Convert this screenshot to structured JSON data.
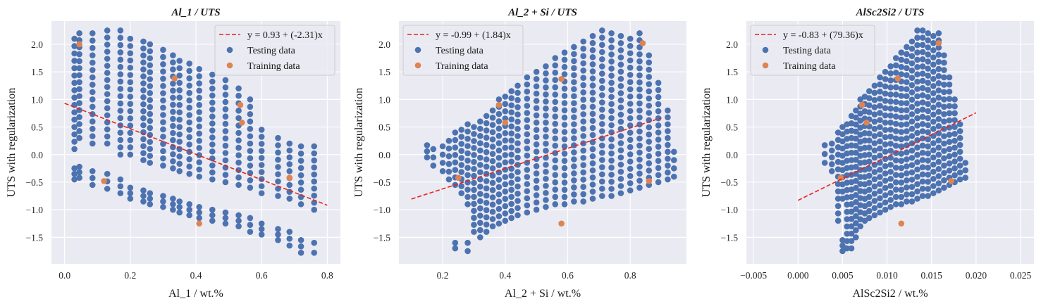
{
  "legend_labels": {
    "testing": "Testing data",
    "training": "Training data"
  },
  "colors": {
    "background": "#eaeaf2",
    "grid": "#ffffff",
    "testing": "#4c72b0",
    "training": "#dd8452",
    "fit": "#e8231a"
  },
  "chart_data": [
    {
      "type": "scatter",
      "title": "Al_1 / UTS",
      "xlabel": "Al_1 / wt.%",
      "ylabel": "UTS with regularization",
      "xlim": [
        -0.04,
        0.84
      ],
      "ylim": [
        -1.98,
        2.42
      ],
      "xticks": [
        0.0,
        0.2,
        0.4,
        0.6,
        0.8
      ],
      "xtick_labels": [
        "0.0",
        "0.2",
        "0.4",
        "0.6",
        "0.8"
      ],
      "yticks": [
        -1.5,
        -1.0,
        -0.5,
        0.0,
        0.5,
        1.0,
        1.5,
        2.0
      ],
      "ytick_labels": [
        "−1.5",
        "−1.0",
        "−0.5",
        "0.0",
        "0.5",
        "1.0",
        "1.5",
        "2.0"
      ],
      "grid": true,
      "legend_position": "top-right",
      "fit": {
        "label": "y = 0.93 + (-2.31)x",
        "intercept": 0.93,
        "slope": -2.31,
        "x_range": [
          0.0,
          0.8
        ]
      },
      "testing_columns": [
        {
          "x": 0.03,
          "bands": [
            [
              -0.45,
              -0.25
            ],
            [
              0.1,
              2.1
            ]
          ]
        },
        {
          "x": 0.045,
          "bands": [
            [
              -0.42,
              -0.22
            ],
            [
              0.3,
              2.2
            ]
          ]
        },
        {
          "x": 0.085,
          "bands": [
            [
              -0.55,
              -0.3
            ],
            [
              0.2,
              2.2
            ]
          ]
        },
        {
          "x": 0.13,
          "bands": [
            [
              -0.62,
              -0.35
            ],
            [
              0.2,
              2.25
            ]
          ]
        },
        {
          "x": 0.17,
          "bands": [
            [
              -0.7,
              -0.45
            ],
            [
              0.0,
              2.25
            ]
          ]
        },
        {
          "x": 0.2,
          "bands": [
            [
              -0.8,
              -0.6
            ],
            [
              0.0,
              2.1
            ]
          ]
        },
        {
          "x": 0.24,
          "bands": [
            [
              -0.85,
              -0.65
            ],
            [
              -0.1,
              2.05
            ]
          ]
        },
        {
          "x": 0.26,
          "bands": [
            [
              -0.9,
              -0.7
            ],
            [
              -0.15,
              2.0
            ]
          ]
        },
        {
          "x": 0.3,
          "bands": [
            [
              -0.95,
              -0.75
            ],
            [
              -0.2,
              1.9
            ]
          ]
        },
        {
          "x": 0.33,
          "bands": [
            [
              -1.0,
              -0.8
            ],
            [
              -0.25,
              1.8
            ]
          ]
        },
        {
          "x": 0.35,
          "bands": [
            [
              -1.05,
              -0.85
            ],
            [
              -0.3,
              1.7
            ]
          ]
        },
        {
          "x": 0.38,
          "bands": [
            [
              -1.1,
              -0.9
            ],
            [
              -0.35,
              1.65
            ]
          ]
        },
        {
          "x": 0.41,
          "bands": [
            [
              -1.15,
              -0.95
            ],
            [
              -0.4,
              1.55
            ]
          ]
        },
        {
          "x": 0.45,
          "bands": [
            [
              -1.2,
              -1.0
            ],
            [
              -0.45,
              1.45
            ]
          ]
        },
        {
          "x": 0.49,
          "bands": [
            [
              -1.25,
              -1.05
            ],
            [
              -0.5,
              1.35
            ]
          ]
        },
        {
          "x": 0.53,
          "bands": [
            [
              -1.3,
              -1.1
            ],
            [
              -0.55,
              1.2
            ]
          ]
        },
        {
          "x": 0.565,
          "bands": [
            [
              -1.4,
              -1.15
            ],
            [
              -0.6,
              1.0
            ]
          ]
        },
        {
          "x": 0.6,
          "bands": [
            [
              -1.45,
              -1.25
            ],
            [
              -0.7,
              0.45
            ]
          ]
        },
        {
          "x": 0.65,
          "bands": [
            [
              -1.55,
              -1.35
            ],
            [
              -0.75,
              0.3
            ]
          ]
        },
        {
          "x": 0.685,
          "bands": [
            [
              -1.65,
              -1.4
            ],
            [
              -0.8,
              0.2
            ]
          ]
        },
        {
          "x": 0.72,
          "bands": [
            [
              -1.78,
              -1.55
            ],
            [
              -0.9,
              0.15
            ]
          ]
        },
        {
          "x": 0.76,
          "bands": [
            [
              -1.78,
              -1.6
            ],
            [
              -1.0,
              0.15
            ]
          ]
        }
      ],
      "training_points": [
        {
          "x": 0.045,
          "y": 2.0
        },
        {
          "x": 0.335,
          "y": 1.38
        },
        {
          "x": 0.535,
          "y": 0.9
        },
        {
          "x": 0.54,
          "y": 0.58
        },
        {
          "x": 0.12,
          "y": -0.48
        },
        {
          "x": 0.685,
          "y": -0.42
        },
        {
          "x": 0.41,
          "y": -1.25
        }
      ]
    },
    {
      "type": "scatter",
      "title": "Al_2 + Si / UTS",
      "xlabel": "Al_2 + Si / wt.%",
      "ylabel": "UTS with regularization",
      "xlim": [
        0.06,
        0.98
      ],
      "ylim": [
        -1.98,
        2.42
      ],
      "xticks": [
        0.2,
        0.4,
        0.6,
        0.8
      ],
      "xtick_labels": [
        "0.2",
        "0.4",
        "0.6",
        "0.8"
      ],
      "yticks": [
        -1.5,
        -1.0,
        -0.5,
        0.0,
        0.5,
        1.0,
        1.5,
        2.0
      ],
      "ytick_labels": [
        "−1.5",
        "−1.0",
        "−0.5",
        "0.0",
        "0.5",
        "1.0",
        "1.5",
        "2.0"
      ],
      "grid": true,
      "legend_position": "top-left",
      "fit": {
        "label": "y = -0.99 + (1.84)x",
        "intercept": -0.99,
        "slope": 1.84,
        "x_range": [
          0.1,
          0.9
        ]
      },
      "testing_columns": [
        {
          "x": 0.15,
          "bands": [
            [
              -0.05,
              0.17
            ]
          ]
        },
        {
          "x": 0.17,
          "bands": [
            [
              -0.2,
              0.1
            ]
          ]
        },
        {
          "x": 0.2,
          "bands": [
            [
              -0.3,
              0.15
            ]
          ]
        },
        {
          "x": 0.22,
          "bands": [
            [
              -0.45,
              0.25
            ]
          ]
        },
        {
          "x": 0.24,
          "bands": [
            [
              -1.7,
              -1.6
            ],
            [
              -0.55,
              0.4
            ]
          ]
        },
        {
          "x": 0.26,
          "bands": [
            [
              -0.7,
              0.45
            ]
          ]
        },
        {
          "x": 0.28,
          "bands": [
            [
              -1.75,
              -1.6
            ],
            [
              -0.9,
              0.55
            ]
          ]
        },
        {
          "x": 0.3,
          "bands": [
            [
              -1.4,
              0.5
            ]
          ]
        },
        {
          "x": 0.32,
          "bands": [
            [
              -1.5,
              0.6
            ]
          ]
        },
        {
          "x": 0.34,
          "bands": [
            [
              -1.4,
              0.7
            ]
          ]
        },
        {
          "x": 0.36,
          "bands": [
            [
              -1.3,
              0.8
            ]
          ]
        },
        {
          "x": 0.38,
          "bands": [
            [
              -1.25,
              1.0
            ]
          ]
        },
        {
          "x": 0.4,
          "bands": [
            [
              -1.2,
              1.05
            ]
          ]
        },
        {
          "x": 0.42,
          "bands": [
            [
              -1.15,
              1.15
            ]
          ]
        },
        {
          "x": 0.44,
          "bands": [
            [
              -1.1,
              1.25
            ]
          ]
        },
        {
          "x": 0.47,
          "bands": [
            [
              -1.05,
              1.4
            ]
          ]
        },
        {
          "x": 0.5,
          "bands": [
            [
              -1.0,
              1.5
            ]
          ]
        },
        {
          "x": 0.53,
          "bands": [
            [
              -0.95,
              1.6
            ]
          ]
        },
        {
          "x": 0.56,
          "bands": [
            [
              -0.9,
              1.75
            ]
          ]
        },
        {
          "x": 0.59,
          "bands": [
            [
              -0.9,
              1.85
            ]
          ]
        },
        {
          "x": 0.62,
          "bands": [
            [
              -0.85,
              1.95
            ]
          ]
        },
        {
          "x": 0.65,
          "bands": [
            [
              -0.85,
              2.05
            ]
          ]
        },
        {
          "x": 0.68,
          "bands": [
            [
              -0.8,
              2.15
            ]
          ]
        },
        {
          "x": 0.71,
          "bands": [
            [
              -0.75,
              2.25
            ]
          ]
        },
        {
          "x": 0.74,
          "bands": [
            [
              -0.75,
              2.2
            ]
          ]
        },
        {
          "x": 0.77,
          "bands": [
            [
              -0.7,
              2.15
            ]
          ]
        },
        {
          "x": 0.8,
          "bands": [
            [
              -0.65,
              2.1
            ]
          ]
        },
        {
          "x": 0.83,
          "bands": [
            [
              -0.6,
              2.2
            ]
          ]
        },
        {
          "x": 0.86,
          "bands": [
            [
              -0.55,
              1.8
            ]
          ]
        },
        {
          "x": 0.89,
          "bands": [
            [
              -0.5,
              1.3
            ]
          ]
        },
        {
          "x": 0.92,
          "bands": [
            [
              -0.45,
              0.8
            ]
          ]
        },
        {
          "x": 0.94,
          "bands": [
            [
              -0.4,
              0.05
            ]
          ]
        }
      ],
      "training_points": [
        {
          "x": 0.84,
          "y": 2.02
        },
        {
          "x": 0.58,
          "y": 1.37
        },
        {
          "x": 0.38,
          "y": 0.9
        },
        {
          "x": 0.4,
          "y": 0.58
        },
        {
          "x": 0.25,
          "y": -0.42
        },
        {
          "x": 0.86,
          "y": -0.48
        },
        {
          "x": 0.58,
          "y": -1.25
        }
      ]
    },
    {
      "type": "scatter",
      "title": "AlSc2Si2 / UTS",
      "xlabel": "AlSc2Si2 / wt.%",
      "ylabel": "UTS with regularization",
      "xlim": [
        -0.0058,
        0.0265
      ],
      "ylim": [
        -1.98,
        2.42
      ],
      "xticks": [
        -0.005,
        0.0,
        0.005,
        0.01,
        0.015,
        0.02,
        0.025
      ],
      "xtick_labels": [
        "−0.005",
        "0.000",
        "0.005",
        "0.010",
        "0.015",
        "0.020",
        "0.025"
      ],
      "yticks": [
        -1.5,
        -1.0,
        -0.5,
        0.0,
        0.5,
        1.0,
        1.5,
        2.0
      ],
      "ytick_labels": [
        "−1.5",
        "−1.0",
        "−0.5",
        "0.0",
        "0.5",
        "1.0",
        "1.5",
        "2.0"
      ],
      "grid": true,
      "legend_position": "top-left",
      "fit": {
        "label": "y = -0.83 + (79.36)x",
        "intercept": -0.83,
        "slope": 79.36,
        "x_range": [
          0.0,
          0.02
        ]
      },
      "testing_columns": [
        {
          "x": 0.003,
          "bands": [
            [
              -0.15,
              0.17
            ]
          ]
        },
        {
          "x": 0.0038,
          "bands": [
            [
              -0.3,
              0.2
            ]
          ]
        },
        {
          "x": 0.0045,
          "bands": [
            [
              -1.2,
              0.4
            ]
          ]
        },
        {
          "x": 0.005,
          "bands": [
            [
              -1.75,
              -1.55
            ],
            [
              -0.8,
              0.5
            ]
          ]
        },
        {
          "x": 0.0055,
          "bands": [
            [
              -1.7,
              0.55
            ]
          ]
        },
        {
          "x": 0.006,
          "bands": [
            [
              -1.7,
              0.7
            ]
          ]
        },
        {
          "x": 0.0065,
          "bands": [
            [
              -1.5,
              0.8
            ]
          ]
        },
        {
          "x": 0.007,
          "bands": [
            [
              -1.3,
              1.0
            ]
          ]
        },
        {
          "x": 0.0075,
          "bands": [
            [
              -1.2,
              1.05
            ]
          ]
        },
        {
          "x": 0.008,
          "bands": [
            [
              -1.15,
              1.15
            ]
          ]
        },
        {
          "x": 0.0086,
          "bands": [
            [
              -1.1,
              1.25
            ]
          ]
        },
        {
          "x": 0.0092,
          "bands": [
            [
              -1.05,
              1.4
            ]
          ]
        },
        {
          "x": 0.0098,
          "bands": [
            [
              -1.0,
              1.5
            ]
          ]
        },
        {
          "x": 0.0104,
          "bands": [
            [
              -0.95,
              1.6
            ]
          ]
        },
        {
          "x": 0.011,
          "bands": [
            [
              -0.9,
              1.75
            ]
          ]
        },
        {
          "x": 0.0116,
          "bands": [
            [
              -0.9,
              1.85
            ]
          ]
        },
        {
          "x": 0.0122,
          "bands": [
            [
              -0.85,
              1.95
            ]
          ]
        },
        {
          "x": 0.0128,
          "bands": [
            [
              -0.85,
              2.05
            ]
          ]
        },
        {
          "x": 0.0134,
          "bands": [
            [
              -0.8,
              2.25
            ]
          ]
        },
        {
          "x": 0.014,
          "bands": [
            [
              -0.75,
              2.25
            ]
          ]
        },
        {
          "x": 0.0146,
          "bands": [
            [
              -0.75,
              2.2
            ]
          ]
        },
        {
          "x": 0.0152,
          "bands": [
            [
              -0.7,
              2.15
            ]
          ]
        },
        {
          "x": 0.0158,
          "bands": [
            [
              -0.65,
              2.2
            ]
          ]
        },
        {
          "x": 0.0164,
          "bands": [
            [
              -0.6,
              1.8
            ]
          ]
        },
        {
          "x": 0.017,
          "bands": [
            [
              -0.55,
              1.4
            ]
          ]
        },
        {
          "x": 0.0176,
          "bands": [
            [
              -0.5,
              1.0
            ]
          ]
        },
        {
          "x": 0.0182,
          "bands": [
            [
              -0.45,
              0.55
            ]
          ]
        },
        {
          "x": 0.0188,
          "bands": [
            [
              -0.42,
              -0.15
            ]
          ]
        }
      ],
      "training_points": [
        {
          "x": 0.0158,
          "y": 2.02
        },
        {
          "x": 0.0112,
          "y": 1.38
        },
        {
          "x": 0.0072,
          "y": 0.9
        },
        {
          "x": 0.0077,
          "y": 0.58
        },
        {
          "x": 0.0048,
          "y": -0.42
        },
        {
          "x": 0.0172,
          "y": -0.48
        },
        {
          "x": 0.0116,
          "y": -1.25
        }
      ]
    }
  ]
}
